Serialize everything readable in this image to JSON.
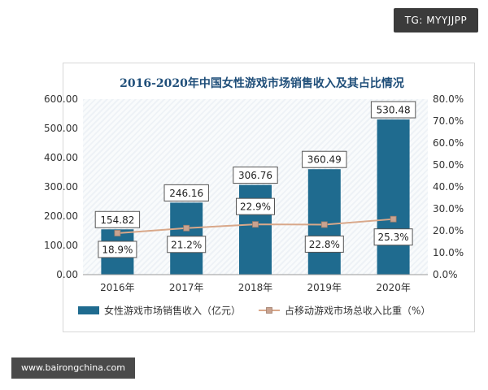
{
  "watermark": "TG: MYYJJPP",
  "source": "www.bairongchina.com",
  "chart_data": {
    "type": "bar",
    "title": "2016-2020年中国女性游戏市场销售收入及其占比情况",
    "categories": [
      "2016年",
      "2017年",
      "2018年",
      "2019年",
      "2020年"
    ],
    "series": [
      {
        "name": "女性游戏市场销售收入（亿元）",
        "type": "bar",
        "axis": "left",
        "values": [
          154.82,
          246.16,
          306.76,
          360.49,
          530.48
        ],
        "labels": [
          "154.82",
          "246.16",
          "306.76",
          "360.49",
          "530.48"
        ],
        "color": "#1f6b8f"
      },
      {
        "name": "占移动游戏市场总收入比重（%）",
        "type": "line",
        "axis": "right",
        "values": [
          18.9,
          21.2,
          22.9,
          22.8,
          25.3
        ],
        "labels": [
          "18.9%",
          "21.2%",
          "22.9%",
          "22.8%",
          "25.3%"
        ],
        "color": "#d9a88a"
      }
    ],
    "y_left": {
      "min": 0,
      "max": 600,
      "ticks": [
        "0.00",
        "100.00",
        "200.00",
        "300.00",
        "400.00",
        "500.00",
        "600.00"
      ]
    },
    "y_right": {
      "min": 0,
      "max": 80,
      "ticks": [
        "0.0%",
        "10.0%",
        "20.0%",
        "30.0%",
        "40.0%",
        "50.0%",
        "60.0%",
        "70.0%",
        "80.0%"
      ]
    },
    "legend_position": "bottom",
    "grid": false
  },
  "colors": {
    "bar": "#1f6b8f",
    "line": "#d9a88a",
    "title": "#1f4e79",
    "axis_text": "#333333"
  }
}
